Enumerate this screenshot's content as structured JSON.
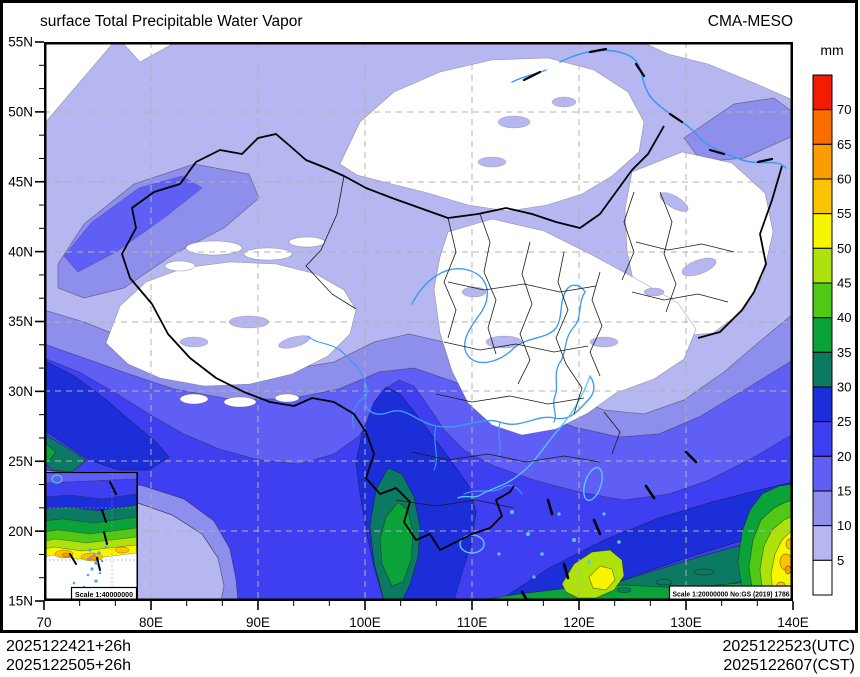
{
  "header": {
    "title": "surface Total Precipitable Water Vapor",
    "model": "CMA-MESO"
  },
  "colorbar": {
    "unit": "mm",
    "labels": [
      "70",
      "65",
      "60",
      "55",
      "50",
      "45",
      "40",
      "35",
      "30",
      "25",
      "20",
      "15",
      "10",
      "5"
    ],
    "colors": [
      "#f21c00",
      "#f86e00",
      "#fb9d00",
      "#fcc400",
      "#f7f500",
      "#aee20c",
      "#4fc916",
      "#0ba23a",
      "#0c7a62",
      "#1c2ed8",
      "#3f3ff2",
      "#5f5ff5",
      "#8e8eed",
      "#b6b6f0",
      "#ffffff"
    ],
    "legend_levels": [
      {
        "range": "<5",
        "color": "#ffffff"
      },
      {
        "range": "5-10",
        "color": "#b6b6f0"
      },
      {
        "range": "10-15",
        "color": "#8e8eed"
      },
      {
        "range": "15-20",
        "color": "#5f5ff5"
      },
      {
        "range": "20-25",
        "color": "#3f3ff2"
      },
      {
        "range": "25-30",
        "color": "#1c2ed8"
      },
      {
        "range": "30-35",
        "color": "#0c7a62"
      },
      {
        "range": "35-40",
        "color": "#0ba23a"
      },
      {
        "range": "40-45",
        "color": "#4fc916"
      },
      {
        "range": "45-50",
        "color": "#aee20c"
      },
      {
        "range": "50-55",
        "color": "#f7f500"
      },
      {
        "range": "55-60",
        "color": "#fcc400"
      },
      {
        "range": "60-65",
        "color": "#fb9d00"
      },
      {
        "range": "65-70",
        "color": "#f86e00"
      },
      {
        "range": ">70",
        "color": "#f21c00"
      }
    ]
  },
  "palette": {
    "lt5": "#ffffff",
    "5-10": "#b6b6f0",
    "10-15": "#8e8eed",
    "15-20": "#5f5ff5",
    "20-25": "#3f3ff2",
    "25-30": "#1c2ed8",
    "30-35": "#0c7a62",
    "35-40": "#0ba23a",
    "40-45": "#4fc916",
    "45-50": "#aee20c",
    "50-55": "#f7f500",
    "55-60": "#fcc400",
    "60-65": "#fb9d00",
    "65-70": "#f86e00",
    "gt70": "#f21c00"
  },
  "colors": {
    "river": "#3d9bf2",
    "coast": "#58c8f2",
    "grid": "#b3b3b3",
    "border": "#000000"
  },
  "axes": {
    "x_range": [
      70,
      140
    ],
    "y_range": [
      15,
      55
    ],
    "minor_divisions": 3,
    "x_major": [
      {
        "value": 70,
        "label": "70"
      },
      {
        "value": 80,
        "label": "80E"
      },
      {
        "value": 90,
        "label": "90E"
      },
      {
        "value": 100,
        "label": "100E"
      },
      {
        "value": 110,
        "label": "110E"
      },
      {
        "value": 120,
        "label": "120E"
      },
      {
        "value": 130,
        "label": "130E"
      },
      {
        "value": 140,
        "label": "140E"
      }
    ],
    "y_major": [
      {
        "value": 55,
        "label": "55N"
      },
      {
        "value": 50,
        "label": "50N"
      },
      {
        "value": 45,
        "label": "45N"
      },
      {
        "value": 40,
        "label": "40N"
      },
      {
        "value": 35,
        "label": "35N"
      },
      {
        "value": 30,
        "label": "30N"
      },
      {
        "value": 25,
        "label": "25N"
      },
      {
        "value": 20,
        "label": "20N"
      },
      {
        "value": 15,
        "label": "15N"
      }
    ]
  },
  "scales": {
    "main": "Scale 1:20000000 No:GS (2019) 1786",
    "inset": "Scale 1:40000000"
  },
  "footer": {
    "run_utc": "2025122421+26h",
    "run_cst": "2025122505+26h",
    "valid_utc": "2025122523(UTC)",
    "valid_cst": "2025122607(CST)"
  }
}
